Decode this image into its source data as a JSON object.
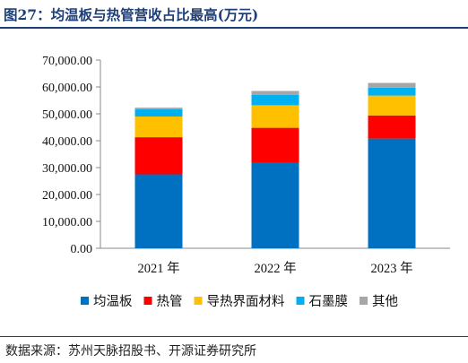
{
  "header": {
    "title": "图27：均温板与热管营收占比最高(万元)"
  },
  "footer": {
    "source": "数据来源：苏州天脉招股书、开源证券研究所"
  },
  "colors": {
    "均温板": "#0070c0",
    "热管": "#ff0000",
    "导热界面材料": "#ffc000",
    "石墨膜": "#00b0f0",
    "其他": "#a6a6a6"
  },
  "chart_data": {
    "type": "bar",
    "stacked": true,
    "categories": [
      "2021 年",
      "2022 年",
      "2023 年"
    ],
    "series": [
      {
        "name": "均温板",
        "values": [
          27500,
          32000,
          40800
        ]
      },
      {
        "name": "热管",
        "values": [
          13800,
          12800,
          8600
        ]
      },
      {
        "name": "导热界面材料",
        "values": [
          7700,
          8400,
          7400
        ]
      },
      {
        "name": "石墨膜",
        "values": [
          2700,
          3900,
          2900
        ]
      },
      {
        "name": "其他",
        "values": [
          600,
          1400,
          1800
        ]
      }
    ],
    "yticks": [
      "0.00",
      "10,000.00",
      "20,000.00",
      "30,000.00",
      "40,000.00",
      "50,000.00",
      "60,000.00",
      "70,000.00"
    ],
    "ylim": [
      0,
      70000
    ],
    "grid": false,
    "legend": "bottom"
  }
}
